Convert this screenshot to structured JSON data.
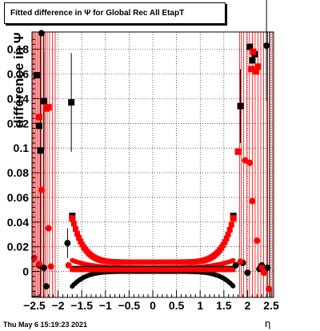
{
  "chart_data": {
    "type": "scatter",
    "title": "Fitted difference in  Ψ  for Global Rec All EtapT",
    "xlabel": "η",
    "ylabel": "difference in Ψ",
    "timestamp": "Thu May  6 15:19:23 2021",
    "xlim": [
      -2.55,
      2.55
    ],
    "ylim": [
      -0.021,
      0.194
    ],
    "xticks": [
      -2.5,
      -2,
      -1.5,
      -1,
      -0.5,
      0,
      0.5,
      1,
      1.5,
      2,
      2.5
    ],
    "xtick_labels": [
      "−2.5",
      "−2",
      "−1.5",
      "−1",
      "−0.5",
      "0",
      "0.5",
      "1",
      "1.5",
      "2",
      "2.5"
    ],
    "yticks": [
      0,
      0.02,
      0.04,
      0.06,
      0.08,
      0.1,
      0.12,
      0.14,
      0.16,
      0.18
    ],
    "ytick_labels": [
      "0",
      "0.02",
      "0.04",
      "0.06",
      "0.08",
      "0.1",
      "0.12",
      "0.14",
      "0.16",
      "0.18"
    ],
    "grid": true,
    "colors": {
      "black": "#000000",
      "red": "#ff0000"
    },
    "series": [
      {
        "marker": "square",
        "color": "#000000",
        "points": [
          [
            -2.45,
            0.159
          ],
          [
            -2.4,
            0.118
          ],
          [
            -2.37,
            0.098
          ],
          [
            -2.3,
            0.138
          ],
          [
            -1.72,
            0.137
          ],
          [
            -1.7,
            0.045
          ],
          [
            1.7,
            0.045
          ],
          [
            1.85,
            0.134
          ],
          [
            2.05,
            0.182
          ],
          [
            2.1,
            0.171
          ],
          [
            2.15,
            0.176
          ]
        ]
      },
      {
        "marker": "square",
        "color": "#ff0000",
        "points": [
          [
            -2.4,
            0.125
          ],
          [
            -2.25,
            0.132
          ],
          [
            -2.2,
            0.133
          ],
          [
            -1.7,
            0.043
          ],
          [
            1.7,
            0.043
          ],
          [
            1.8,
            0.097
          ],
          [
            2.08,
            0.164
          ],
          [
            2.12,
            0.178
          ],
          [
            2.18,
            0.162
          ],
          [
            2.22,
            0.166
          ]
        ]
      },
      {
        "marker": "circle",
        "color": "#000000",
        "points": [
          [
            -2.35,
            0.193
          ],
          [
            -2.3,
            0.003
          ],
          [
            -2.25,
            -0.012
          ],
          [
            -2.4,
            0.005
          ],
          [
            -1.8,
            0.023
          ],
          [
            1.75,
            0.005
          ],
          [
            1.9,
            0.007
          ],
          [
            2.0,
            -0.001
          ],
          [
            2.25,
            0.002
          ],
          [
            2.3,
            0.005
          ],
          [
            2.4,
            0.183
          ],
          [
            2.42,
            0.003
          ]
        ]
      },
      {
        "marker": "circle",
        "color": "#ff0000",
        "points": [
          [
            -2.5,
            0.011
          ],
          [
            -2.4,
            0.006
          ],
          [
            -2.35,
            0.066
          ],
          [
            -2.2,
            0.035
          ],
          [
            -2.15,
            0.004
          ],
          [
            -1.78,
            0.005
          ],
          [
            1.85,
            0.008
          ],
          [
            1.95,
            0.09
          ],
          [
            2.05,
            0.088
          ],
          [
            2.1,
            0.057
          ],
          [
            2.2,
            0.025
          ],
          [
            2.3,
            0.003
          ],
          [
            2.35,
            -0.001
          ],
          [
            2.45,
            -0.014
          ]
        ]
      }
    ]
  }
}
